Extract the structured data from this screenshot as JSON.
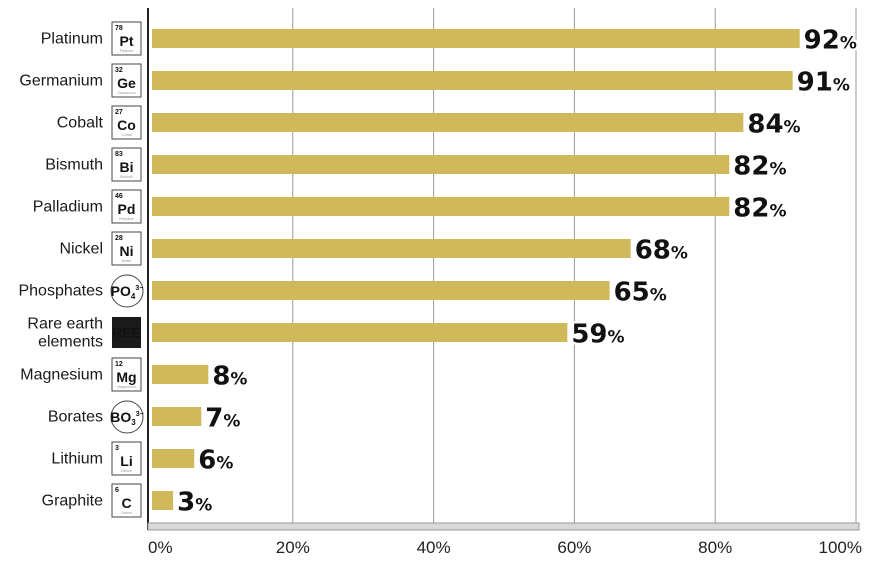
{
  "chart_data": {
    "type": "bar",
    "orientation": "horizontal",
    "categories": [
      "Platinum",
      "Germanium",
      "Cobalt",
      "Bismuth",
      "Palladium",
      "Nickel",
      "Phosphates",
      "Rare earth elements",
      "Magnesium",
      "Borates",
      "Lithium",
      "Graphite"
    ],
    "values": [
      92,
      91,
      84,
      82,
      82,
      68,
      65,
      59,
      8,
      7,
      6,
      3
    ],
    "value_labels": [
      "92%",
      "91%",
      "84%",
      "82%",
      "82%",
      "68%",
      "65%",
      "59%",
      "8%",
      "7%",
      "6%",
      "3%"
    ],
    "xlim": [
      0,
      100
    ],
    "x_ticks": [
      "0%",
      "20%",
      "40%",
      "60%",
      "80%",
      "100%"
    ],
    "grid": "vertical",
    "colors": {
      "bar": "#cfb95a",
      "grid": "#9a9a9a",
      "text": "#111111"
    },
    "element_icons": [
      {
        "kind": "tile",
        "number": "78",
        "symbol": "Pt",
        "name": "Platinum"
      },
      {
        "kind": "tile",
        "number": "32",
        "symbol": "Ge",
        "name": "Germanium"
      },
      {
        "kind": "tile",
        "number": "27",
        "symbol": "Co",
        "name": "Cobalt"
      },
      {
        "kind": "tile",
        "number": "83",
        "symbol": "Bi",
        "name": "Bismuth"
      },
      {
        "kind": "tile",
        "number": "46",
        "symbol": "Pd",
        "name": "Palladium"
      },
      {
        "kind": "tile",
        "number": "28",
        "symbol": "Ni",
        "name": "Nickel"
      },
      {
        "kind": "ion",
        "base": "PO",
        "sub": "4",
        "sup": "3−"
      },
      {
        "kind": "dark",
        "symbol": "REE"
      },
      {
        "kind": "tile",
        "number": "12",
        "symbol": "Mg",
        "name": "Magnesium"
      },
      {
        "kind": "ion",
        "base": "BO",
        "sub": "3",
        "sup": "3−"
      },
      {
        "kind": "tile",
        "number": "3",
        "symbol": "Li",
        "name": "Lithium"
      },
      {
        "kind": "tile",
        "number": "6",
        "symbol": "C",
        "name": "Carbon"
      }
    ]
  }
}
